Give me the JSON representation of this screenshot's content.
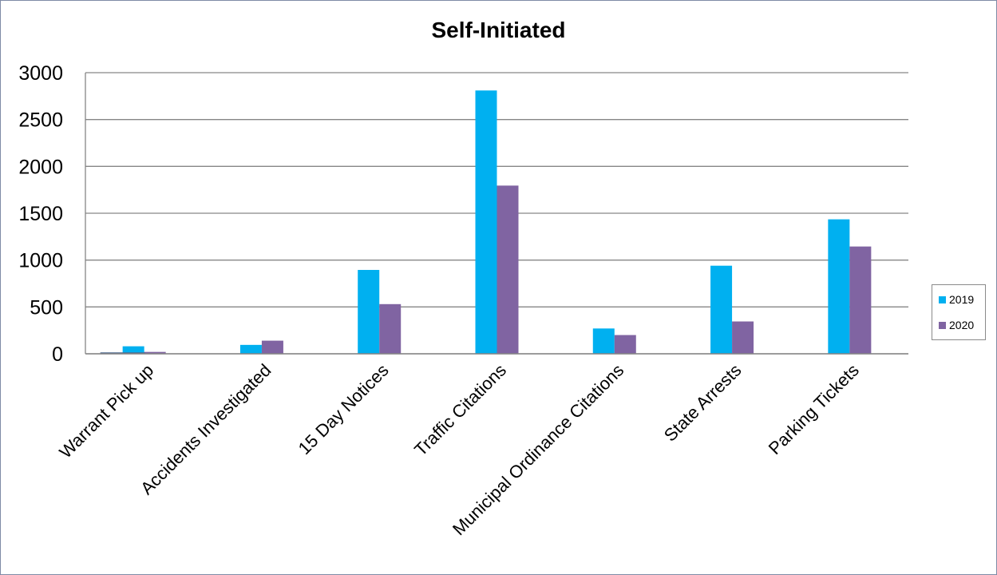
{
  "chart_data": {
    "type": "bar",
    "title": "Self-Initiated",
    "categories": [
      "Warrant Pick up",
      "Accidents Investigated",
      "15 Day Notices",
      "Traffic Citations",
      "Municipal Ordinance Citations",
      "State Arrests",
      "Parking Tickets"
    ],
    "series": [
      {
        "name": "2019",
        "color": "#00b0f0",
        "values": [
          80,
          95,
          895,
          2810,
          270,
          940,
          1435
        ]
      },
      {
        "name": "2020",
        "color": "#8064a2",
        "values": [
          20,
          140,
          530,
          1795,
          200,
          345,
          1145
        ]
      }
    ],
    "extra_marks": [
      {
        "category": "Warrant Pick up",
        "value": 15,
        "color": "#4f6b8f"
      }
    ],
    "ylim": [
      0,
      3000
    ],
    "yticks": [
      0,
      500,
      1000,
      1500,
      2000,
      2500,
      3000
    ],
    "grid": true,
    "legend": "right"
  }
}
